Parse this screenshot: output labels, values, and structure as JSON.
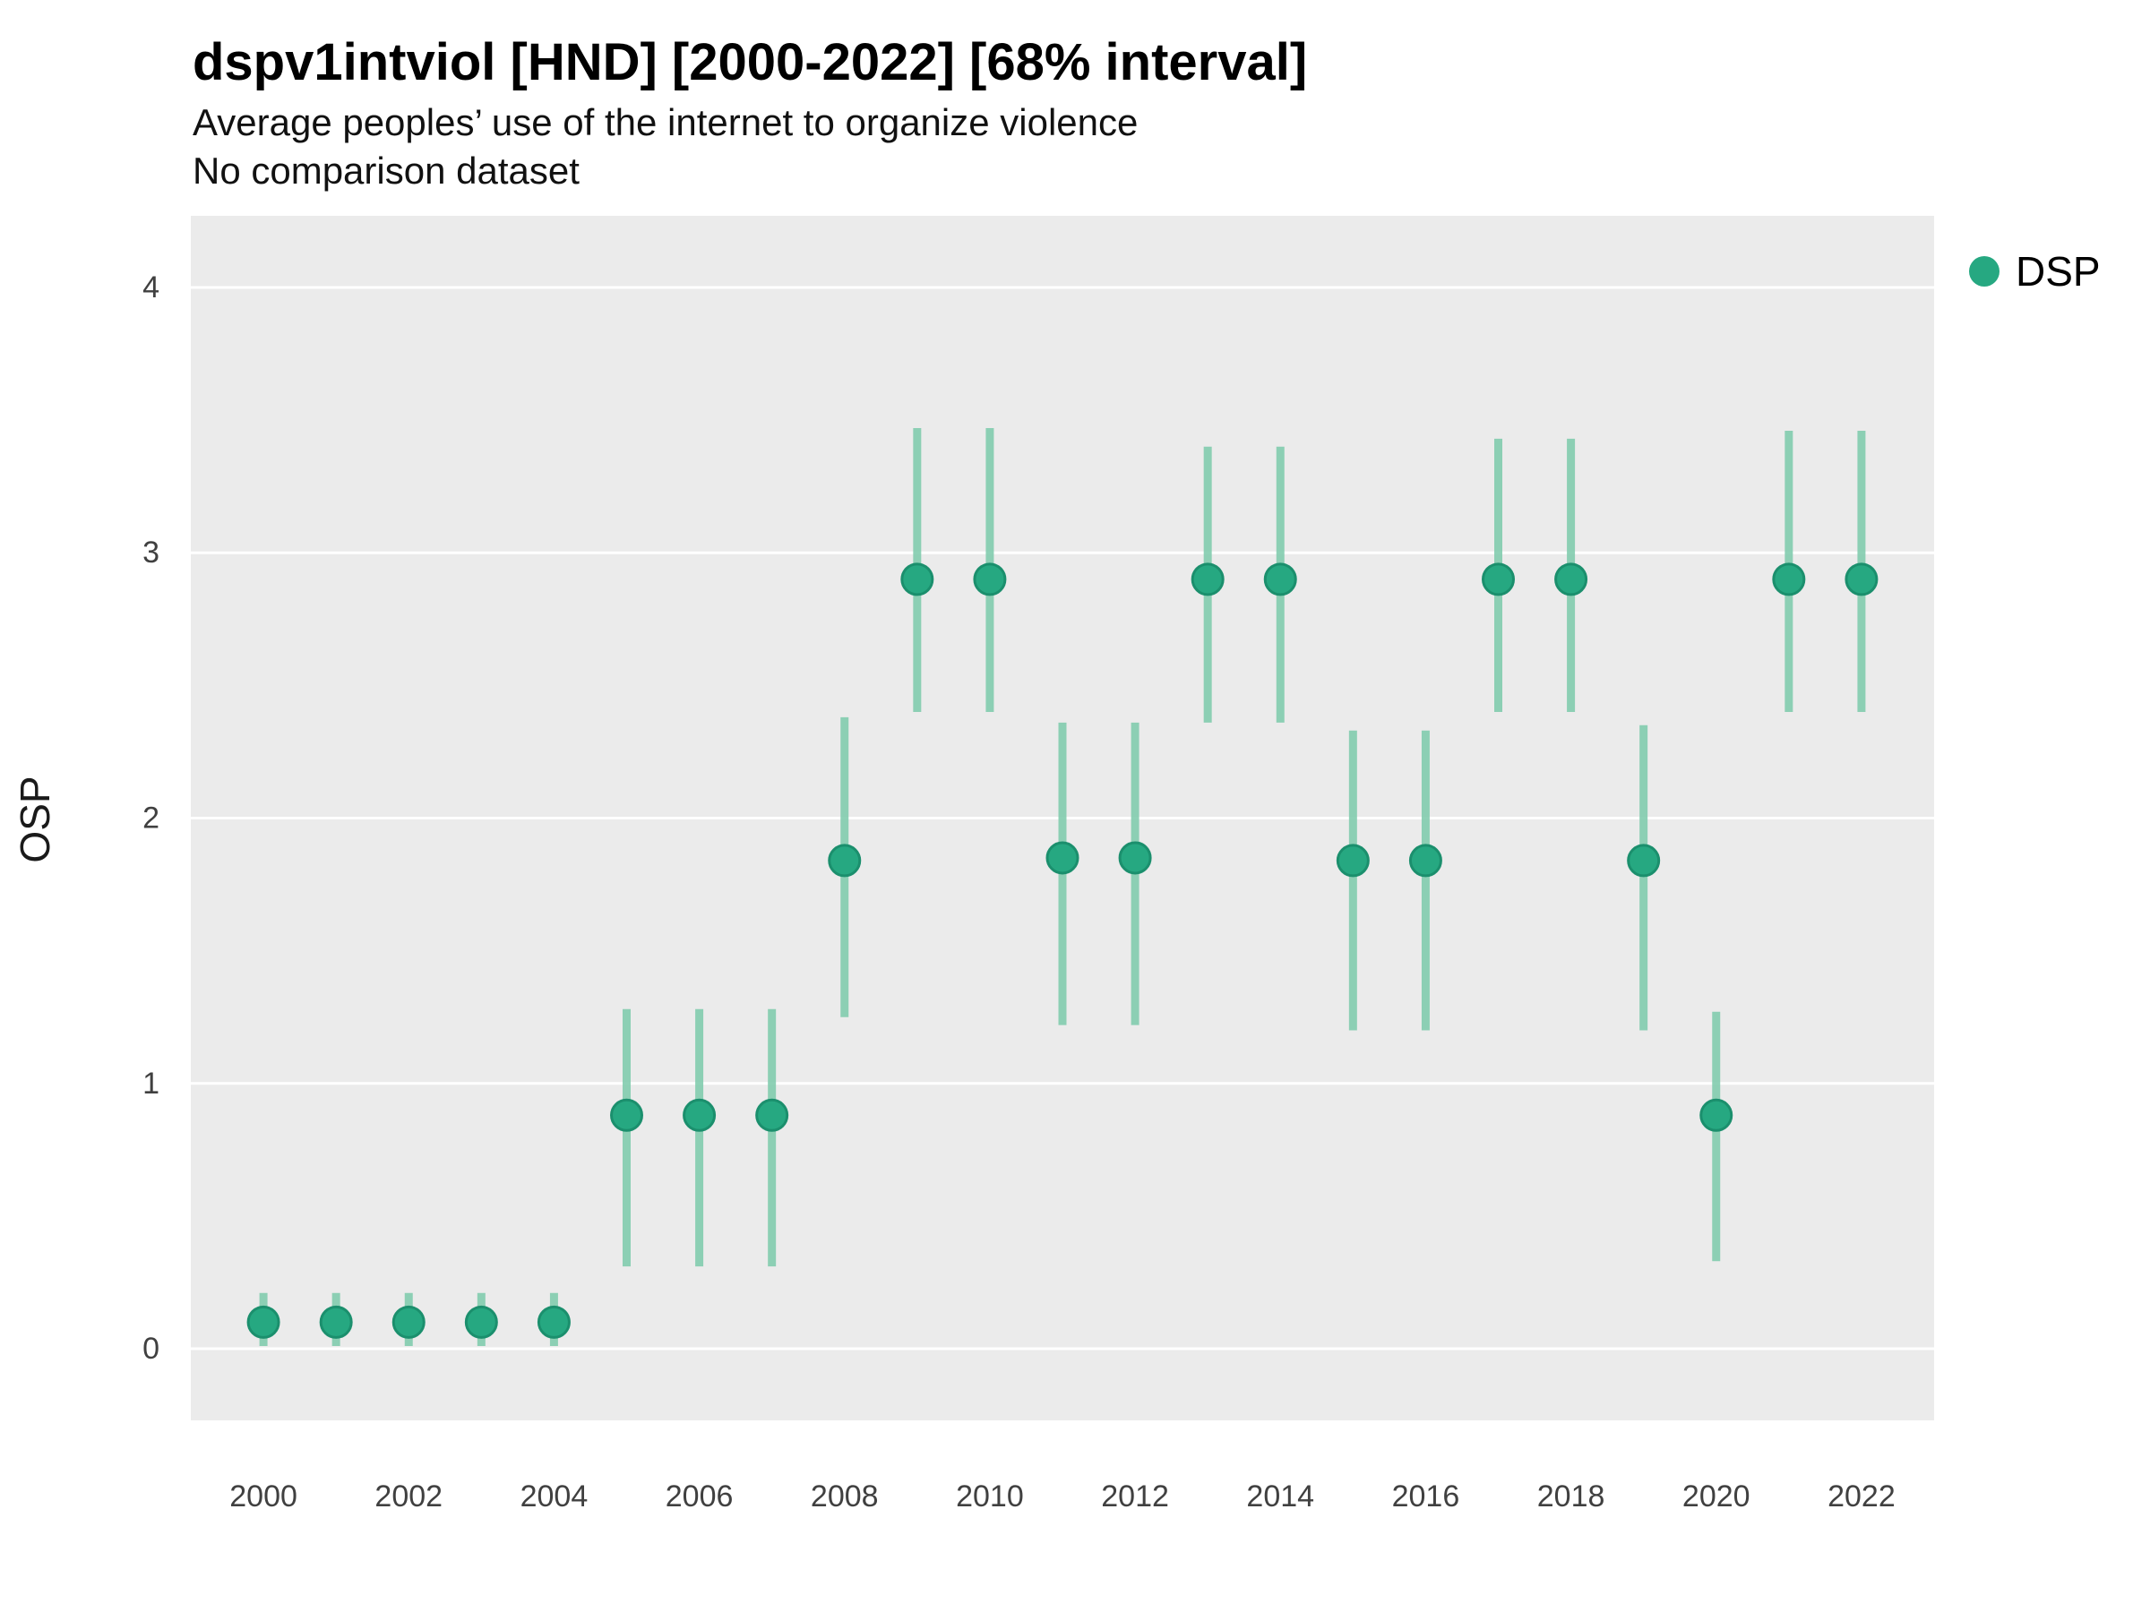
{
  "header": {
    "title": "dspv1intviol [HND] [2000-2022] [68% interval]",
    "subtitle": "Average peoples’ use of the internet to organize violence",
    "comparison_note": "No comparison dataset"
  },
  "chart_data": {
    "type": "scatter",
    "title": "dspv1intviol [HND] [2000-2022] [68% interval]",
    "subtitle": "Average peoples’ use of the internet to organize violence",
    "note": "No comparison dataset",
    "interval": "68%",
    "xlabel": "",
    "ylabel": "OSP",
    "legend": [
      {
        "label": "DSP",
        "color": "#26a881"
      }
    ],
    "legend_position": "right-top",
    "grid": "major-horizontal",
    "xlim": [
      1999,
      2023
    ],
    "ylim": [
      -0.27,
      4.27
    ],
    "x_ticks": [
      2000,
      2002,
      2004,
      2006,
      2008,
      2010,
      2012,
      2014,
      2016,
      2018,
      2020,
      2022
    ],
    "y_ticks": [
      0,
      1,
      2,
      3,
      4
    ],
    "colors": {
      "point": "#26a881",
      "point_stroke": "#1b8f6d",
      "interval": "#82cdaf",
      "plot_bg": "#ebebeb",
      "grid": "#ffffff",
      "axis_text": "#404040"
    },
    "series": [
      {
        "name": "DSP",
        "points": [
          {
            "year": 2000,
            "value": 0.1,
            "lo": 0.01,
            "hi": 0.21
          },
          {
            "year": 2001,
            "value": 0.1,
            "lo": 0.01,
            "hi": 0.21
          },
          {
            "year": 2002,
            "value": 0.1,
            "lo": 0.01,
            "hi": 0.21
          },
          {
            "year": 2003,
            "value": 0.1,
            "lo": 0.01,
            "hi": 0.21
          },
          {
            "year": 2004,
            "value": 0.1,
            "lo": 0.01,
            "hi": 0.21
          },
          {
            "year": 2005,
            "value": 0.88,
            "lo": 0.31,
            "hi": 1.28
          },
          {
            "year": 2006,
            "value": 0.88,
            "lo": 0.31,
            "hi": 1.28
          },
          {
            "year": 2007,
            "value": 0.88,
            "lo": 0.31,
            "hi": 1.28
          },
          {
            "year": 2008,
            "value": 1.84,
            "lo": 1.25,
            "hi": 2.38
          },
          {
            "year": 2009,
            "value": 2.9,
            "lo": 2.4,
            "hi": 3.47
          },
          {
            "year": 2010,
            "value": 2.9,
            "lo": 2.4,
            "hi": 3.47
          },
          {
            "year": 2011,
            "value": 1.85,
            "lo": 1.22,
            "hi": 2.36
          },
          {
            "year": 2012,
            "value": 1.85,
            "lo": 1.22,
            "hi": 2.36
          },
          {
            "year": 2013,
            "value": 2.9,
            "lo": 2.36,
            "hi": 3.4
          },
          {
            "year": 2014,
            "value": 2.9,
            "lo": 2.36,
            "hi": 3.4
          },
          {
            "year": 2015,
            "value": 1.84,
            "lo": 1.2,
            "hi": 2.33
          },
          {
            "year": 2016,
            "value": 1.84,
            "lo": 1.2,
            "hi": 2.33
          },
          {
            "year": 2017,
            "value": 2.9,
            "lo": 2.4,
            "hi": 3.43
          },
          {
            "year": 2018,
            "value": 2.9,
            "lo": 2.4,
            "hi": 3.43
          },
          {
            "year": 2019,
            "value": 1.84,
            "lo": 1.2,
            "hi": 2.35
          },
          {
            "year": 2020,
            "value": 0.88,
            "lo": 0.33,
            "hi": 1.27
          },
          {
            "year": 2021,
            "value": 2.9,
            "lo": 2.4,
            "hi": 3.46
          },
          {
            "year": 2022,
            "value": 2.9,
            "lo": 2.4,
            "hi": 3.46
          }
        ]
      }
    ]
  }
}
